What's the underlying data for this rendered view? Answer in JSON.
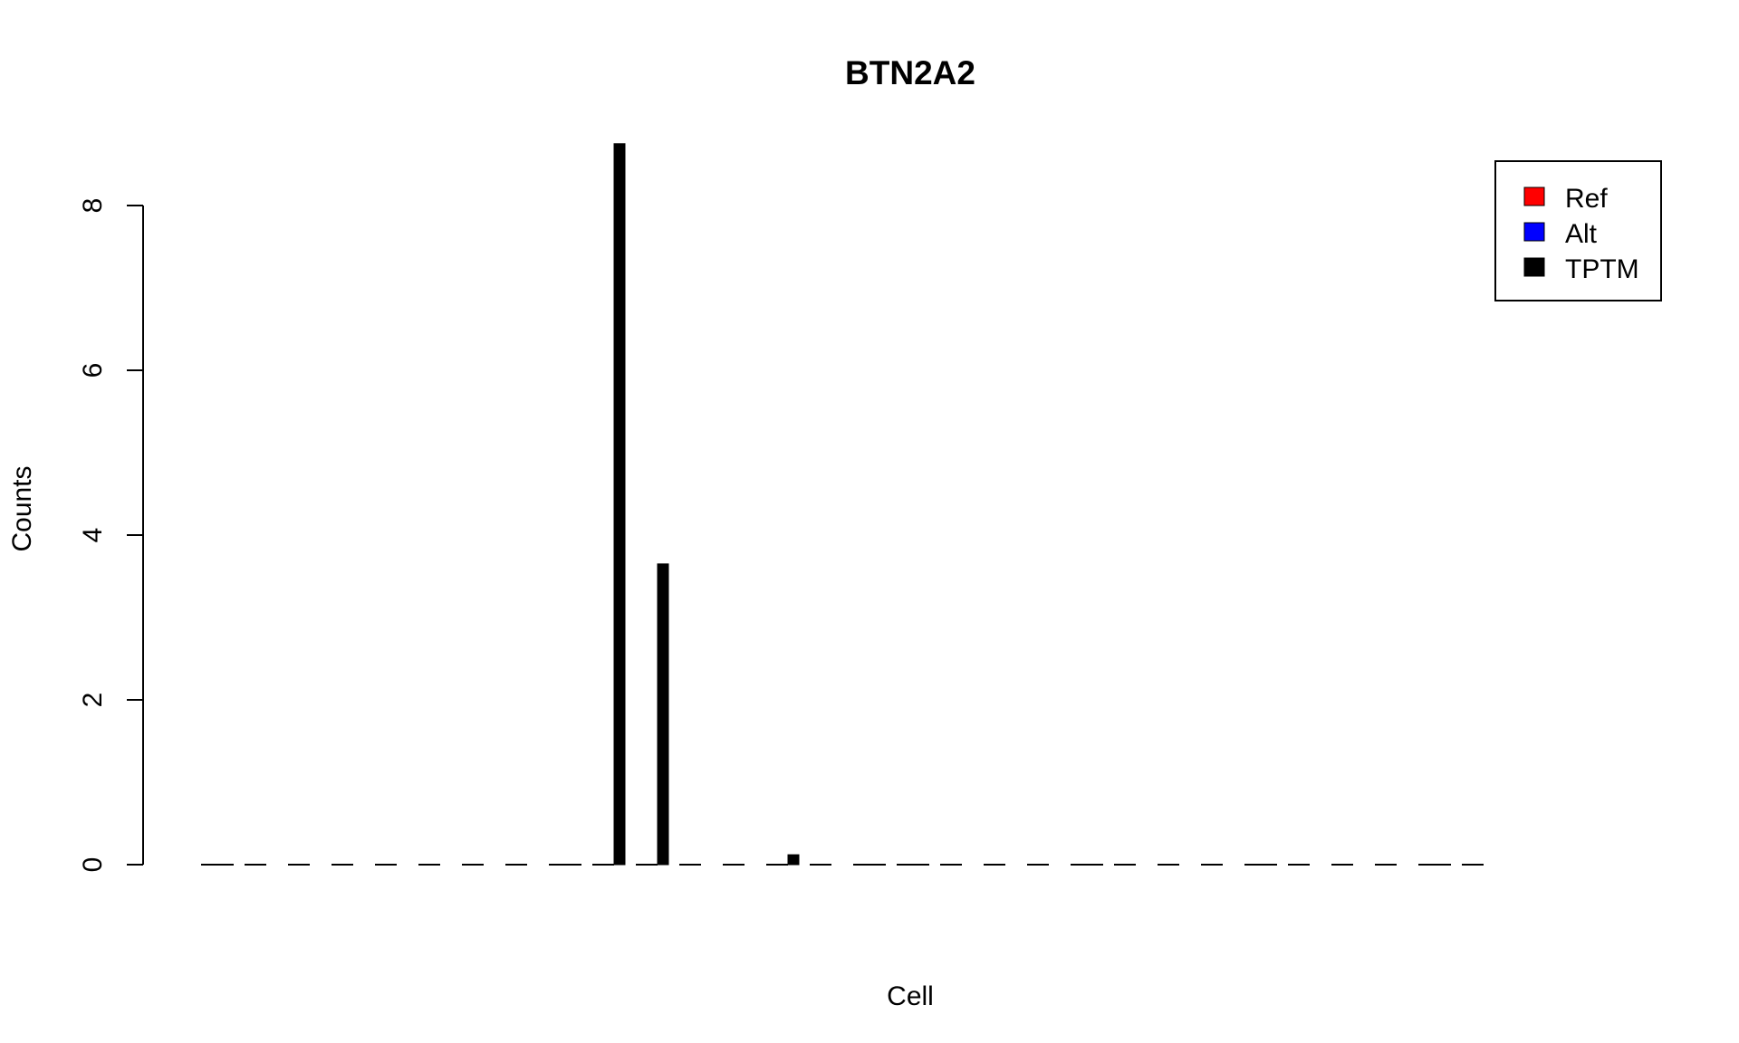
{
  "chart_data": {
    "type": "bar",
    "title": "BTN2A2",
    "xlabel": "Cell",
    "ylabel": "Counts",
    "ylim": [
      0,
      8.75
    ],
    "yticks": [
      "0",
      "2",
      "4",
      "6",
      "8"
    ],
    "grid": false,
    "legend_position": "top-right",
    "cell_count": 30,
    "series": [
      {
        "name": "Ref",
        "color": "#ff0000",
        "values": [
          0,
          0,
          0,
          0,
          0,
          0,
          0,
          0,
          0,
          0,
          0,
          0,
          0,
          0,
          0,
          0,
          0,
          0,
          0,
          0,
          0,
          0,
          0,
          0,
          0,
          0,
          0,
          0,
          0,
          0
        ]
      },
      {
        "name": "Alt",
        "color": "#0000ff",
        "values": [
          0,
          0,
          0,
          0,
          0,
          0,
          0,
          0,
          0,
          0,
          0,
          0,
          0,
          0,
          0,
          0,
          0,
          0,
          0,
          0,
          0,
          0,
          0,
          0,
          0,
          0,
          0,
          0,
          0,
          0
        ]
      },
      {
        "name": "TPTM",
        "color": "#000000",
        "values": [
          0,
          null,
          null,
          null,
          null,
          null,
          null,
          null,
          0,
          8.75,
          3.65,
          null,
          null,
          0.12,
          null,
          0,
          0,
          null,
          null,
          null,
          0,
          null,
          null,
          null,
          0,
          null,
          null,
          null,
          0,
          null
        ]
      }
    ]
  }
}
